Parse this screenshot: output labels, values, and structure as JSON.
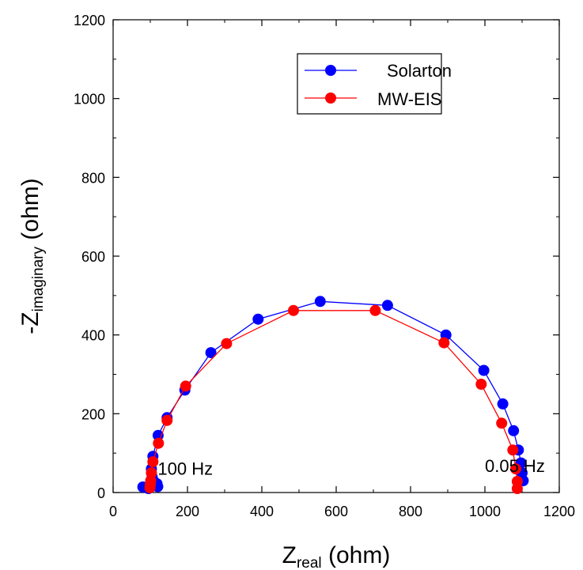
{
  "chart_data": {
    "type": "scatter",
    "xlabel": {
      "main": "Z",
      "sub": "real",
      "rest": " (ohm)"
    },
    "ylabel": {
      "main": "-Z",
      "sub": "imaginary",
      "rest": " (ohm)"
    },
    "xlim": [
      0,
      1200
    ],
    "ylim": [
      0,
      1200
    ],
    "xticks": [
      "0",
      "200",
      "400",
      "600",
      "800",
      "1000",
      "1200"
    ],
    "yticks": [
      "0",
      "200",
      "400",
      "600",
      "800",
      "1000",
      "1200"
    ],
    "grid": false,
    "legend_position": "top-right",
    "series": [
      {
        "name": "Solarton",
        "color": "#0000ff",
        "points": [
          [
            1103,
            30
          ],
          [
            1100,
            50
          ],
          [
            1097,
            75
          ],
          [
            1090,
            108
          ],
          [
            1077,
            157
          ],
          [
            1048,
            225
          ],
          [
            997,
            310
          ],
          [
            895,
            400
          ],
          [
            738,
            475
          ],
          [
            557,
            485
          ],
          [
            390,
            440
          ],
          [
            263,
            355
          ],
          [
            193,
            260
          ],
          [
            145,
            190
          ],
          [
            121,
            145
          ],
          [
            107,
            92
          ],
          [
            103,
            60
          ],
          [
            105,
            40
          ],
          [
            110,
            28
          ],
          [
            118,
            22
          ],
          [
            120,
            15
          ],
          [
            95,
            10
          ],
          [
            80,
            14
          ]
        ]
      },
      {
        "name": "MW-EIS",
        "color": "#ff0000",
        "points": [
          [
            1087,
            10
          ],
          [
            1087,
            28
          ],
          [
            1083,
            60
          ],
          [
            1075,
            108
          ],
          [
            1045,
            176
          ],
          [
            990,
            275
          ],
          [
            890,
            380
          ],
          [
            705,
            462
          ],
          [
            485,
            462
          ],
          [
            305,
            378
          ],
          [
            195,
            270
          ],
          [
            145,
            183
          ],
          [
            122,
            125
          ],
          [
            107,
            78
          ],
          [
            103,
            50
          ],
          [
            101,
            30
          ],
          [
            100,
            20
          ],
          [
            99,
            12
          ]
        ]
      }
    ],
    "annotations": [
      {
        "text": "100 Hz",
        "x": 120,
        "y": 45
      },
      {
        "text": "0.05 Hz",
        "x": 1000,
        "y": 52
      }
    ]
  }
}
